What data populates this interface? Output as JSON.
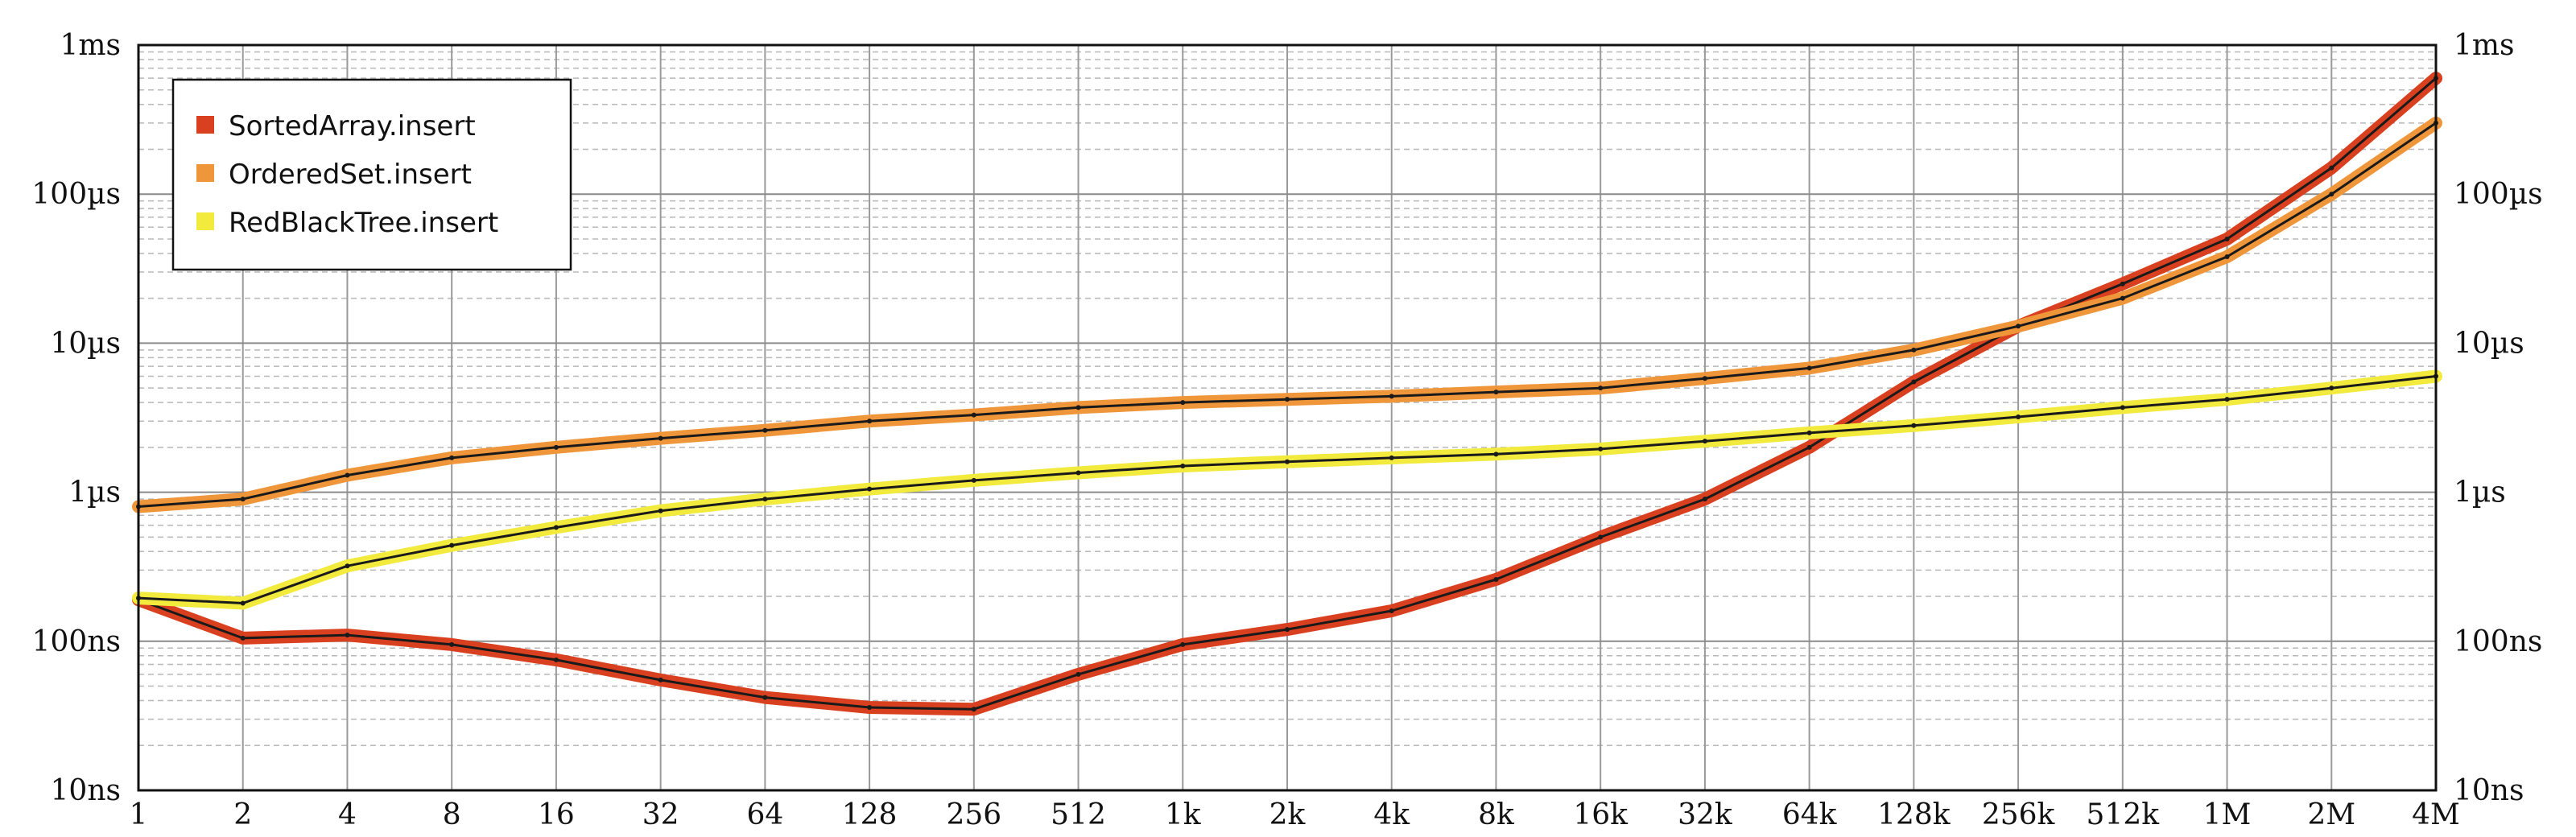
{
  "chart_data": {
    "type": "line",
    "x_scale": "log2",
    "y_scale": "log10",
    "xlim": [
      1,
      4194304
    ],
    "ylim": [
      "10ns",
      "1ms"
    ],
    "grid": true,
    "legend_position": "top-left",
    "x_tick_labels": [
      "1",
      "2",
      "4",
      "8",
      "16",
      "32",
      "64",
      "128",
      "256",
      "512",
      "1k",
      "2k",
      "4k",
      "8k",
      "16k",
      "32k",
      "64k",
      "128k",
      "256k",
      "512k",
      "1M",
      "2M",
      "4M"
    ],
    "y_tick_labels": [
      "10ns",
      "100ns",
      "1µs",
      "10µs",
      "100µs",
      "1ms"
    ],
    "x": [
      1,
      2,
      4,
      8,
      16,
      32,
      64,
      128,
      256,
      512,
      1024,
      2048,
      4096,
      8192,
      16384,
      32768,
      65536,
      131072,
      262144,
      524288,
      1048576,
      2097152,
      4194304
    ],
    "series": [
      {
        "name": "SortedArray.insert",
        "color": "#d8401f",
        "values_ns": [
          190,
          105,
          110,
          95,
          75,
          55,
          42,
          36,
          35,
          60,
          95,
          120,
          160,
          260,
          500,
          900,
          2000,
          5500,
          13000,
          25000,
          50000,
          150000,
          600000
        ]
      },
      {
        "name": "OrderedSet.insert",
        "color": "#f0963a",
        "values_ns": [
          800,
          900,
          1300,
          1700,
          2000,
          2300,
          2600,
          3000,
          3300,
          3700,
          4000,
          4200,
          4400,
          4700,
          5000,
          5800,
          6800,
          9000,
          13000,
          20000,
          38000,
          100000,
          300000
        ]
      },
      {
        "name": "RedBlackTree.insert",
        "color": "#f2ea3c",
        "values_ns": [
          195,
          180,
          320,
          440,
          580,
          750,
          900,
          1050,
          1200,
          1350,
          1500,
          1600,
          1700,
          1800,
          1950,
          2200,
          2500,
          2800,
          3200,
          3700,
          4200,
          5000,
          6000
        ]
      }
    ]
  },
  "legend": {
    "items": [
      {
        "label": "SortedArray.insert",
        "color": "#d8401f"
      },
      {
        "label": "OrderedSet.insert",
        "color": "#f0963a"
      },
      {
        "label": "RedBlackTree.insert",
        "color": "#f2ea3c"
      }
    ]
  }
}
